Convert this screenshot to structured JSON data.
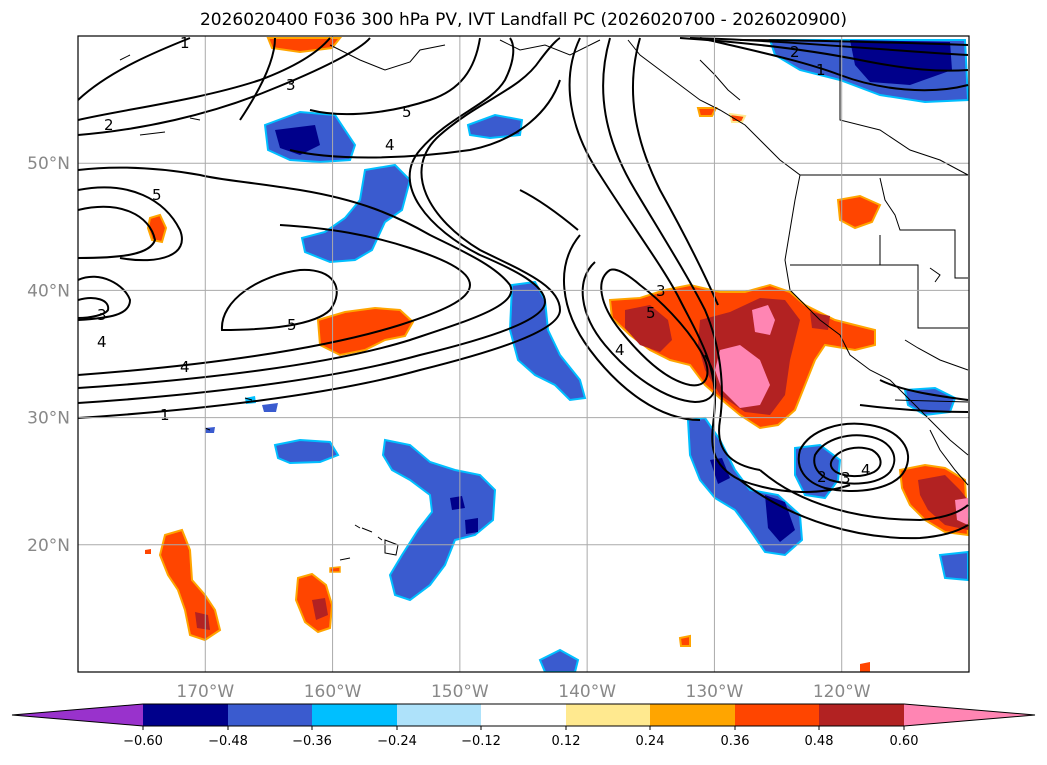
{
  "title": "2026020400 F036 300 hPa PV, IVT Landfall PC (2026020700 - 2026020900)",
  "map": {
    "lon_range": [
      -180,
      -110
    ],
    "lat_range": [
      10,
      60
    ],
    "lon_ticks": [
      {
        "lon": -170,
        "label": "170°W"
      },
      {
        "lon": -160,
        "label": "160°W"
      },
      {
        "lon": -150,
        "label": "150°W"
      },
      {
        "lon": -140,
        "label": "140°W"
      },
      {
        "lon": -130,
        "label": "130°W"
      },
      {
        "lon": -120,
        "label": "120°W"
      }
    ],
    "lat_ticks": [
      {
        "lat": 50,
        "label": "50°N"
      },
      {
        "lat": 40,
        "label": "40°N"
      },
      {
        "lat": 30,
        "label": "30°N"
      },
      {
        "lat": 20,
        "label": "20°N"
      }
    ],
    "grid": true
  },
  "colorbar": {
    "ticks": [
      "−0.60",
      "−0.48",
      "−0.36",
      "−0.24",
      "−0.12",
      "0.12",
      "0.24",
      "0.36",
      "0.48",
      "0.60"
    ],
    "colors": [
      "#9932cc",
      "#00008b",
      "#3a5bcf",
      "#00bfff",
      "#aee2fa",
      "#ffffff",
      "#ffe98f",
      "#ffa500",
      "#ff4500",
      "#b22222",
      "#ff85b3"
    ],
    "extend": "both"
  },
  "contour_labels": [
    "1",
    "2",
    "3",
    "4",
    "5"
  ]
}
